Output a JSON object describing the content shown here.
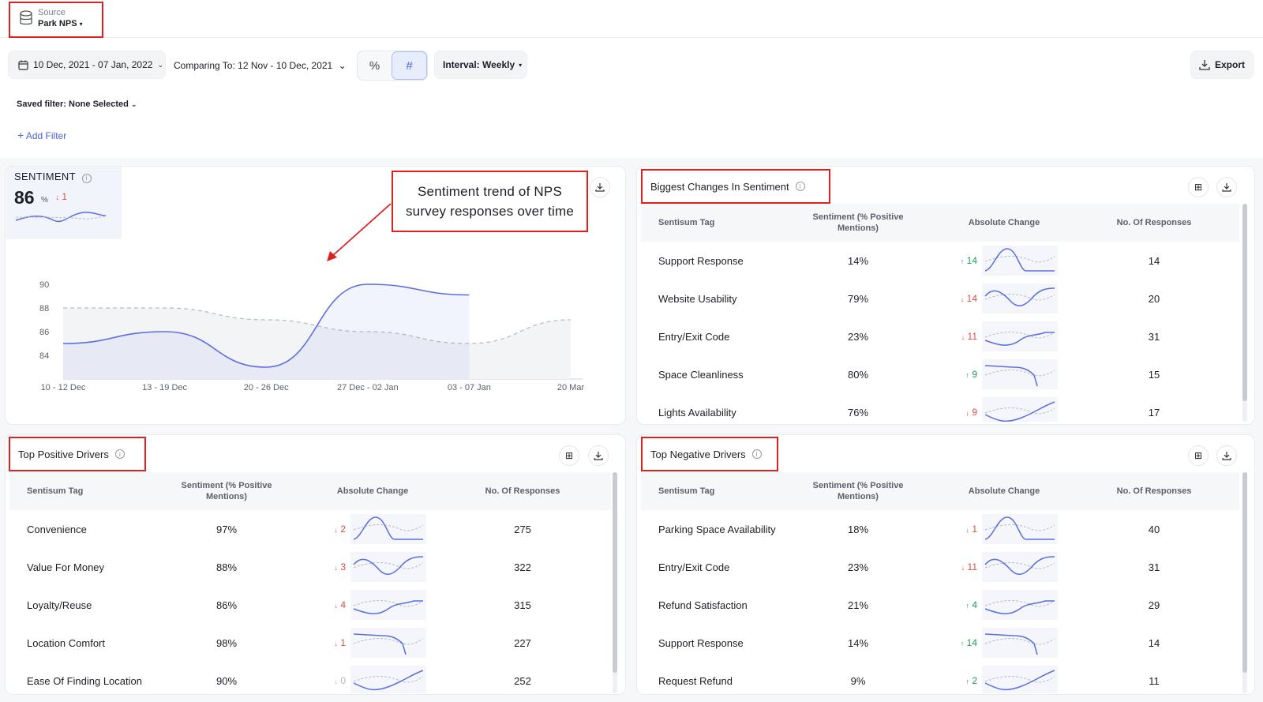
{
  "source": {
    "label": "Source",
    "value": "Park NPS"
  },
  "toolbar": {
    "date_range": "10 Dec, 2021 - 07 Jan, 2022",
    "comparing": "Comparing To: 12 Nov - 10 Dec, 2021",
    "percent_symbol": "%",
    "hash_symbol": "#",
    "interval": "Interval: Weekly",
    "export": "Export"
  },
  "filters": {
    "saved": "Saved filter: None Selected",
    "add": "Add Filter"
  },
  "sentiment": {
    "label": "SENTIMENT",
    "value": "86",
    "unit": "%",
    "change": "1",
    "annotation_line1": "Sentiment trend of NPS",
    "annotation_line2": "survey responses over time"
  },
  "chart_data": {
    "type": "line",
    "title": "SENTIMENT",
    "x": [
      "10 - 12 Dec",
      "13 - 19 Dec",
      "20 - 26 Dec",
      "27 Dec - 02 Jan",
      "03 - 07 Jan",
      "20 Mar"
    ],
    "ylim": [
      82,
      92
    ],
    "yticks": [
      84,
      86,
      88,
      90
    ],
    "series": [
      {
        "values": [
          85,
          86,
          83,
          90,
          89.1,
          null
        ],
        "color": "#5b6ee0"
      },
      {
        "values": [
          88,
          88,
          87,
          86,
          85,
          87
        ],
        "color": "#b8bcc4",
        "dashed": true
      }
    ],
    "grid": false
  },
  "biggest": {
    "title": "Biggest Changes In Sentiment",
    "headers": [
      "Sentisum Tag",
      "Sentiment (% Positive Mentions)",
      "Absolute Change",
      "No. Of Responses"
    ],
    "rows": [
      {
        "tag": "Support Response",
        "sentiment": "14%",
        "dir": "up",
        "change": "14",
        "responses": "14"
      },
      {
        "tag": "Website Usability",
        "sentiment": "79%",
        "dir": "down",
        "change": "14",
        "responses": "20"
      },
      {
        "tag": "Entry/Exit Code",
        "sentiment": "23%",
        "dir": "down",
        "change": "11",
        "responses": "31"
      },
      {
        "tag": "Space Cleanliness",
        "sentiment": "80%",
        "dir": "up",
        "change": "9",
        "responses": "15"
      },
      {
        "tag": "Lights Availability",
        "sentiment": "76%",
        "dir": "down",
        "change": "9",
        "responses": "17"
      }
    ]
  },
  "top_positive": {
    "title": "Top Positive Drivers",
    "headers": [
      "Sentisum Tag",
      "Sentiment (% Positive Mentions)",
      "Absolute Change",
      "No. Of Responses"
    ],
    "rows": [
      {
        "tag": "Convenience",
        "sentiment": "97%",
        "dir": "down",
        "change": "2",
        "responses": "275"
      },
      {
        "tag": "Value For Money",
        "sentiment": "88%",
        "dir": "down",
        "change": "3",
        "responses": "322"
      },
      {
        "tag": "Loyalty/Reuse",
        "sentiment": "86%",
        "dir": "down",
        "change": "4",
        "responses": "315"
      },
      {
        "tag": "Location Comfort",
        "sentiment": "98%",
        "dir": "down",
        "change": "1",
        "responses": "227"
      },
      {
        "tag": "Ease Of Finding Location",
        "sentiment": "90%",
        "dir": "flat",
        "change": "0",
        "responses": "252"
      }
    ]
  },
  "top_negative": {
    "title": "Top Negative Drivers",
    "headers": [
      "Sentisum Tag",
      "Sentiment (% Positive Mentions)",
      "Absolute Change",
      "No. Of Responses"
    ],
    "rows": [
      {
        "tag": "Parking Space Availability",
        "sentiment": "18%",
        "dir": "down",
        "change": "1",
        "responses": "40"
      },
      {
        "tag": "Entry/Exit Code",
        "sentiment": "23%",
        "dir": "down",
        "change": "11",
        "responses": "31"
      },
      {
        "tag": "Refund Satisfaction",
        "sentiment": "21%",
        "dir": "up",
        "change": "4",
        "responses": "29"
      },
      {
        "tag": "Support Response",
        "sentiment": "14%",
        "dir": "up",
        "change": "14",
        "responses": "14"
      },
      {
        "tag": "Request Refund",
        "sentiment": "9%",
        "dir": "up",
        "change": "2",
        "responses": "11"
      }
    ]
  }
}
